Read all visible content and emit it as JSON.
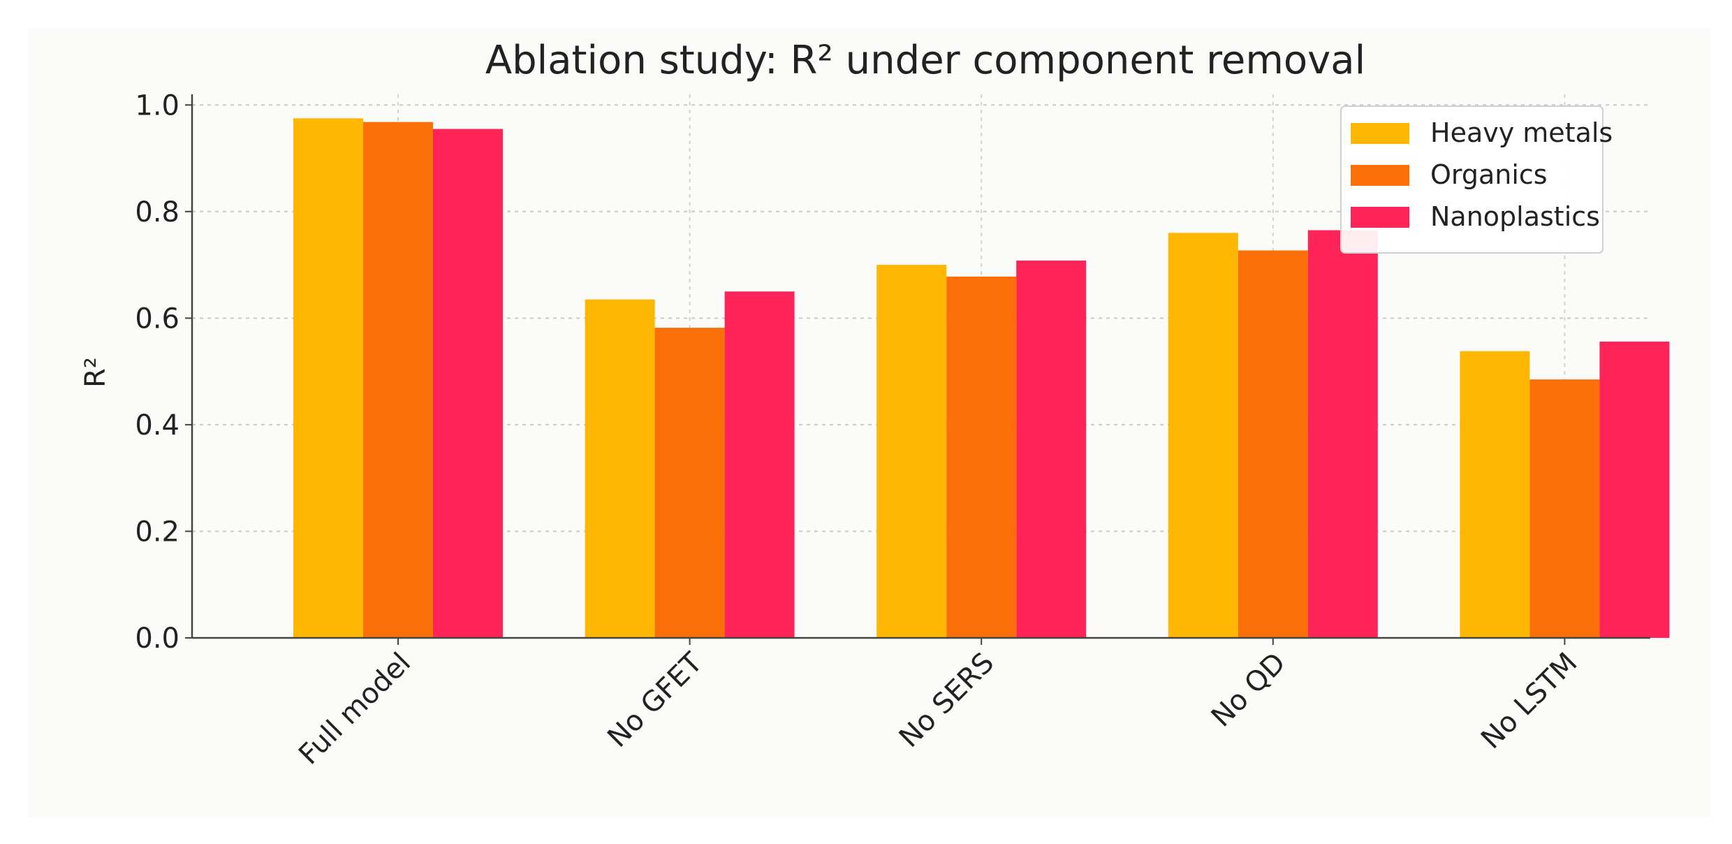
{
  "chart_data": {
    "type": "bar",
    "title": "Ablation study: R² under component removal",
    "xlabel": "",
    "ylabel": "R²",
    "ylim": [
      0,
      1.02
    ],
    "yticks": [
      0.0,
      0.2,
      0.4,
      0.6,
      0.8,
      1.0
    ],
    "ytick_labels": [
      "0.0",
      "0.2",
      "0.4",
      "0.6",
      "0.8",
      "1.0"
    ],
    "categories": [
      "Full model",
      "No GFET",
      "No SERS",
      "No QD",
      "No LSTM"
    ],
    "series": [
      {
        "name": "Heavy metals",
        "color": "#FFB703",
        "values": [
          0.975,
          0.635,
          0.7,
          0.76,
          0.538
        ]
      },
      {
        "name": "Organics",
        "color": "#FB6F08",
        "values": [
          0.968,
          0.582,
          0.678,
          0.727,
          0.485
        ]
      },
      {
        "name": "Nanoplastics",
        "color": "#FF2458",
        "values": [
          0.955,
          0.65,
          0.708,
          0.765,
          0.556
        ]
      }
    ],
    "grid": true,
    "legend": "top-right"
  }
}
